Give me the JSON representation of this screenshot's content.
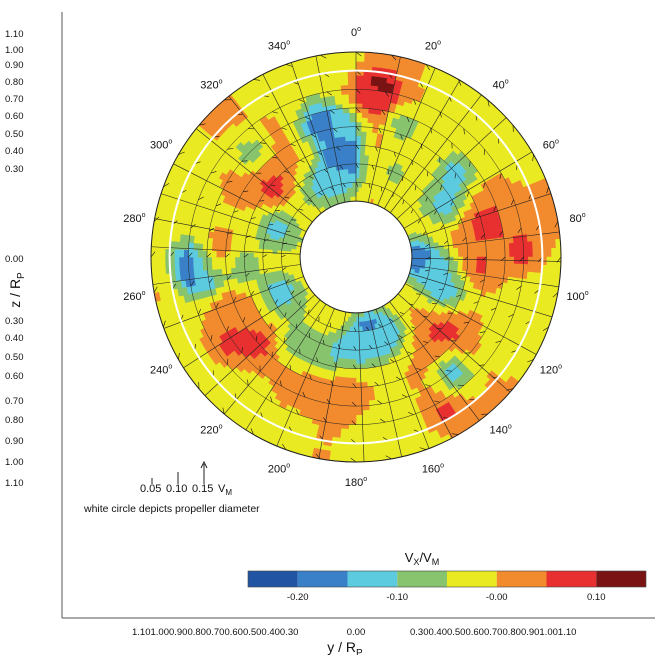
{
  "chart_data": {
    "type": "heatmap",
    "plot_kind": "polar wake contour",
    "ylabel": "z / R",
    "ylabel_sub": "P",
    "xlabel": "y / R",
    "xlabel_sub": "P",
    "y_ticks_upper": [
      "1.10",
      "1.00",
      "0.90",
      "0.80",
      "0.70",
      "0.60",
      "0.50",
      "0.40",
      "0.30",
      "0.00"
    ],
    "y_ticks_lower": [
      "0.30",
      "0.40",
      "0.50",
      "0.60",
      "0.70",
      "0.80",
      "0.90",
      "1.00",
      "1.10"
    ],
    "x_ticks_left": "1.101.000.900.800.700.600.500.400.30",
    "x_ticks_mid": "0.00",
    "x_ticks_right": "0.300.400.500.600.700.800.901.001.10",
    "angle_labels": [
      {
        "deg": 0,
        "text": "0"
      },
      {
        "deg": 20,
        "text": "20"
      },
      {
        "deg": 40,
        "text": "40"
      },
      {
        "deg": 60,
        "text": "60"
      },
      {
        "deg": 80,
        "text": "80"
      },
      {
        "deg": 100,
        "text": "100"
      },
      {
        "deg": 120,
        "text": "120"
      },
      {
        "deg": 140,
        "text": "140"
      },
      {
        "deg": 160,
        "text": "160"
      },
      {
        "deg": 180,
        "text": "180"
      },
      {
        "deg": 200,
        "text": "200"
      },
      {
        "deg": 220,
        "text": "220"
      },
      {
        "deg": 240,
        "text": "240"
      },
      {
        "deg": 260,
        "text": "260"
      },
      {
        "deg": 280,
        "text": "280"
      },
      {
        "deg": 300,
        "text": "300"
      },
      {
        "deg": 320,
        "text": "320"
      },
      {
        "deg": 340,
        "text": "340"
      }
    ],
    "degree_symbol": "o",
    "r_inner": 0.3,
    "r_outer": 1.1,
    "propeller_radius": 1.0,
    "colorbar": {
      "title": "V",
      "title_sub1": "X",
      "title_mid": "/V",
      "title_sub2": "M",
      "levels": [
        -0.25,
        -0.2,
        -0.15,
        -0.1,
        -0.05,
        0.0,
        0.05,
        0.1,
        0.15
      ],
      "colors": [
        "#2155a3",
        "#3a80c8",
        "#5ccbdf",
        "#88c36d",
        "#eaea22",
        "#f28a2e",
        "#e83030",
        "#7a1414"
      ],
      "tick_labels": [
        {
          "value": -0.2,
          "text": "-0.20"
        },
        {
          "value": -0.1,
          "text": "-0.10"
        },
        {
          "value": 0.0,
          "text": "-0.00"
        },
        {
          "value": 0.1,
          "text": "0.10"
        }
      ]
    },
    "vector_scale": {
      "labels": [
        "0.05",
        "0.10",
        "0.15"
      ],
      "unit": "V",
      "unit_sub": "M"
    },
    "note": "white circle depicts propeller diameter",
    "field": {
      "base_level": "yellow_green",
      "patches": [
        {
          "angle": 8,
          "r": 0.92,
          "value": 0.12
        },
        {
          "angle": 5,
          "r": 0.85,
          "value": 0.07
        },
        {
          "angle": 345,
          "r": 0.75,
          "value": -0.18
        },
        {
          "angle": 352,
          "r": 0.55,
          "value": -0.19
        },
        {
          "angle": 350,
          "r": 0.45,
          "value": -0.13
        },
        {
          "angle": 355,
          "r": 0.7,
          "value": -0.12
        },
        {
          "angle": 20,
          "r": 0.75,
          "value": -0.08
        },
        {
          "angle": 50,
          "r": 0.7,
          "value": -0.12
        },
        {
          "angle": 60,
          "r": 0.55,
          "value": -0.12
        },
        {
          "angle": 75,
          "r": 0.72,
          "value": 0.07
        },
        {
          "angle": 95,
          "r": 0.65,
          "value": 0.06
        },
        {
          "angle": 88,
          "r": 0.9,
          "value": 0.07
        },
        {
          "angle": 90,
          "r": 0.32,
          "value": -0.18
        },
        {
          "angle": 100,
          "r": 0.45,
          "value": -0.12
        },
        {
          "angle": 110,
          "r": 0.52,
          "value": -0.12
        },
        {
          "angle": 130,
          "r": 0.62,
          "value": 0.07
        },
        {
          "angle": 140,
          "r": 0.82,
          "value": -0.12
        },
        {
          "angle": 150,
          "r": 0.96,
          "value": 0.07
        },
        {
          "angle": 160,
          "r": 0.45,
          "value": -0.12
        },
        {
          "angle": 170,
          "r": 0.42,
          "value": -0.18
        },
        {
          "angle": 180,
          "r": 0.5,
          "value": -0.1
        },
        {
          "angle": 198,
          "r": 0.55,
          "value": -0.1
        },
        {
          "angle": 215,
          "r": 0.55,
          "value": -0.08
        },
        {
          "angle": 228,
          "r": 0.7,
          "value": 0.07
        },
        {
          "angle": 236,
          "r": 0.82,
          "value": 0.06
        },
        {
          "angle": 245,
          "r": 0.45,
          "value": -0.14
        },
        {
          "angle": 262,
          "r": 0.85,
          "value": -0.15
        },
        {
          "angle": 268,
          "r": 0.88,
          "value": -0.2
        },
        {
          "angle": 270,
          "r": 0.75,
          "value": 0.07
        },
        {
          "angle": 265,
          "r": 0.62,
          "value": -0.1
        },
        {
          "angle": 290,
          "r": 0.45,
          "value": -0.12
        },
        {
          "angle": 310,
          "r": 0.58,
          "value": 0.07
        },
        {
          "angle": 315,
          "r": 0.8,
          "value": -0.08
        },
        {
          "angle": 330,
          "r": 0.42,
          "value": -0.1
        },
        {
          "angle": 25,
          "r": 0.5,
          "value": -0.06
        },
        {
          "angle": 120,
          "r": 0.9,
          "value": -0.04
        },
        {
          "angle": 250,
          "r": 1.0,
          "value": -0.03
        },
        {
          "angle": 300,
          "r": 1.0,
          "value": -0.03
        },
        {
          "angle": 30,
          "r": 1.02,
          "value": -0.03
        },
        {
          "angle": 200,
          "r": 1.0,
          "value": -0.03
        }
      ]
    }
  }
}
